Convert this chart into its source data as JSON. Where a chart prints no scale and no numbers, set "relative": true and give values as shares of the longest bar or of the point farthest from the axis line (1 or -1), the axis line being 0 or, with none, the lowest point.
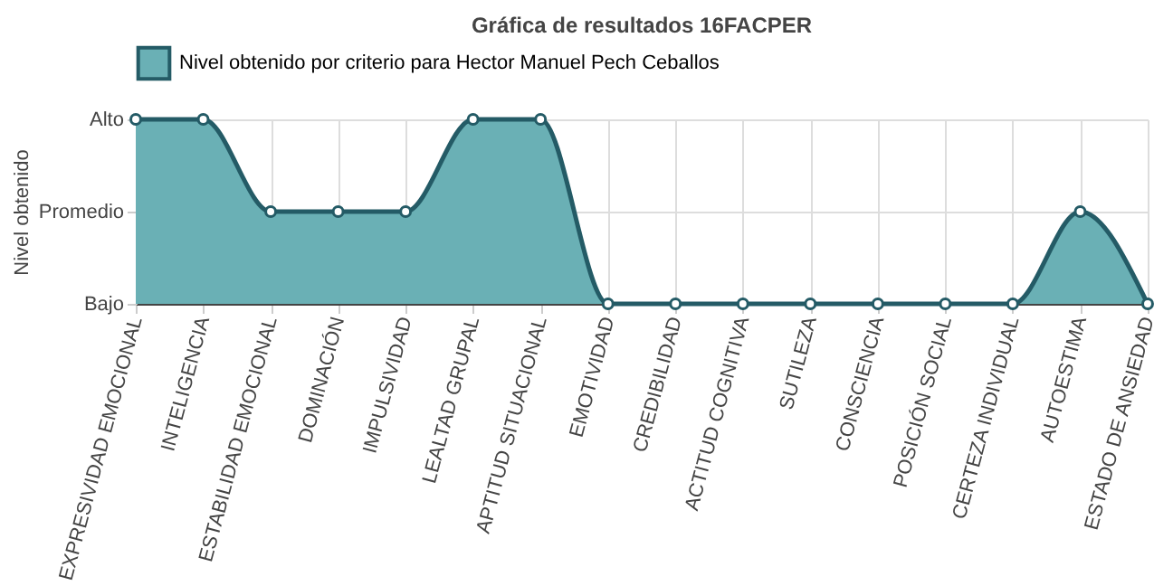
{
  "chart_data": {
    "type": "area",
    "title": "Gráfica de resultados 16FACPER",
    "ylabel": "Nivel obtenido",
    "categories": [
      "EXPRESIVIDAD EMOCIONAL",
      "INTELIGENCIA",
      "ESTABILIDAD EMOCIONAL",
      "DOMINACIÓN",
      "IMPULSIVIDAD",
      "LEALTAD GRUPAL",
      "APTITUD SITUACIONAL",
      "EMOTIVIDAD",
      "CREDIBILIDAD",
      "ACTITUD COGNITIVA",
      "SUTILEZA",
      "CONSCIENCIA",
      "POSICIÓN SOCIAL",
      "CERTEZA INDIVIDUAL",
      "AUTOESTIMA",
      "ESTADO DE ANSIEDAD"
    ],
    "relative": true,
    "annotations": [
      "Alto",
      "Promedio",
      "Bajo"
    ],
    "series": [
      {
        "name": "Nivel obtenido por criterio para Hector Manuel Pech Ceballos",
        "color": "#6ab0b5",
        "values": [
          1,
          1,
          0.5,
          0.5,
          0.5,
          1,
          1,
          0,
          0,
          0,
          0,
          0,
          0,
          0,
          0.5,
          0
        ]
      }
    ],
    "grid": true,
    "legend": "top",
    "marker": "circle",
    "line_style": "solid"
  }
}
